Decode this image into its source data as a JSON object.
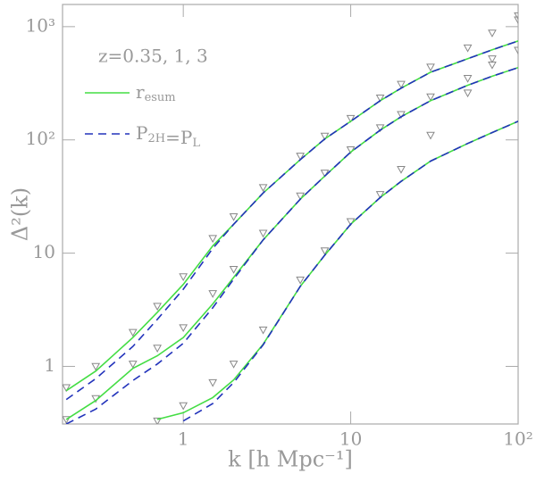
{
  "chart_data": {
    "type": "line",
    "annotation": "z=0.35, 1, 3",
    "xlabel": "k [h Mpc⁻¹]",
    "ylabel": "Δ²(k)",
    "xlog": true,
    "ylog": true,
    "xlim": [
      0.19,
      100
    ],
    "ylim": [
      0.31,
      1570
    ],
    "xticks": [
      1,
      10,
      {
        "value": 100,
        "label": "10²"
      }
    ],
    "yticks": [
      1,
      10,
      {
        "value": 100,
        "label": "10²"
      },
      {
        "value": 1000,
        "label": "10³"
      }
    ],
    "x": [
      0.2,
      0.3,
      0.5,
      0.7,
      1,
      1.5,
      2,
      3,
      5,
      7,
      10,
      15,
      20,
      30,
      50,
      70,
      100
    ],
    "series": [
      {
        "name": "resum",
        "color": "#44dd44",
        "dashed": false,
        "curves": [
          [
            0.61,
            0.91,
            1.8,
            3.0,
            5.3,
            11.6,
            18,
            34,
            67,
            102,
            146,
            222,
            286,
            396,
            521,
            624,
            748
          ],
          [
            0.34,
            0.5,
            0.96,
            1.24,
            1.8,
            3.56,
            6.1,
            13.1,
            30,
            48,
            78,
            122,
            160,
            222,
            304,
            365,
            435
          ],
          [
            null,
            null,
            null,
            0.34,
            0.39,
            0.53,
            0.76,
            1.57,
            5.1,
            9.6,
            18,
            31,
            43,
            65,
            93,
            116,
            146
          ]
        ]
      },
      {
        "name": "P2H=PL",
        "color": "#2233bb",
        "dashed": true,
        "curves": [
          [
            0.51,
            0.78,
            1.5,
            2.6,
            4.8,
            11,
            18,
            34,
            67,
            102,
            146,
            222,
            286,
            396,
            521,
            624,
            748
          ],
          [
            0.31,
            0.42,
            0.75,
            1.05,
            1.6,
            3.3,
            5.9,
            13.1,
            30,
            48,
            78,
            122,
            160,
            222,
            304,
            365,
            435
          ],
          [
            null,
            null,
            null,
            null,
            0.33,
            0.47,
            0.72,
            1.55,
            5.1,
            9.6,
            18,
            31,
            43,
            65,
            93,
            116,
            146
          ]
        ]
      }
    ],
    "markers": {
      "color": "#888888",
      "curves": [
        [
          0.65,
          1.0,
          2.0,
          3.4,
          6.2,
          13.5,
          21,
          38,
          72,
          108,
          155,
          235,
          310,
          440,
          650,
          880,
          1250
        ],
        [
          0.34,
          0.52,
          1.05,
          1.45,
          2.2,
          4.4,
          7.2,
          15,
          32,
          51,
          82,
          128,
          168,
          240,
          350,
          460,
          620
        ],
        [
          null,
          null,
          null,
          0.33,
          0.45,
          0.72,
          1.05,
          2.1,
          5.8,
          10.5,
          19,
          33,
          55,
          110,
          260,
          520,
          1150
        ]
      ]
    }
  }
}
